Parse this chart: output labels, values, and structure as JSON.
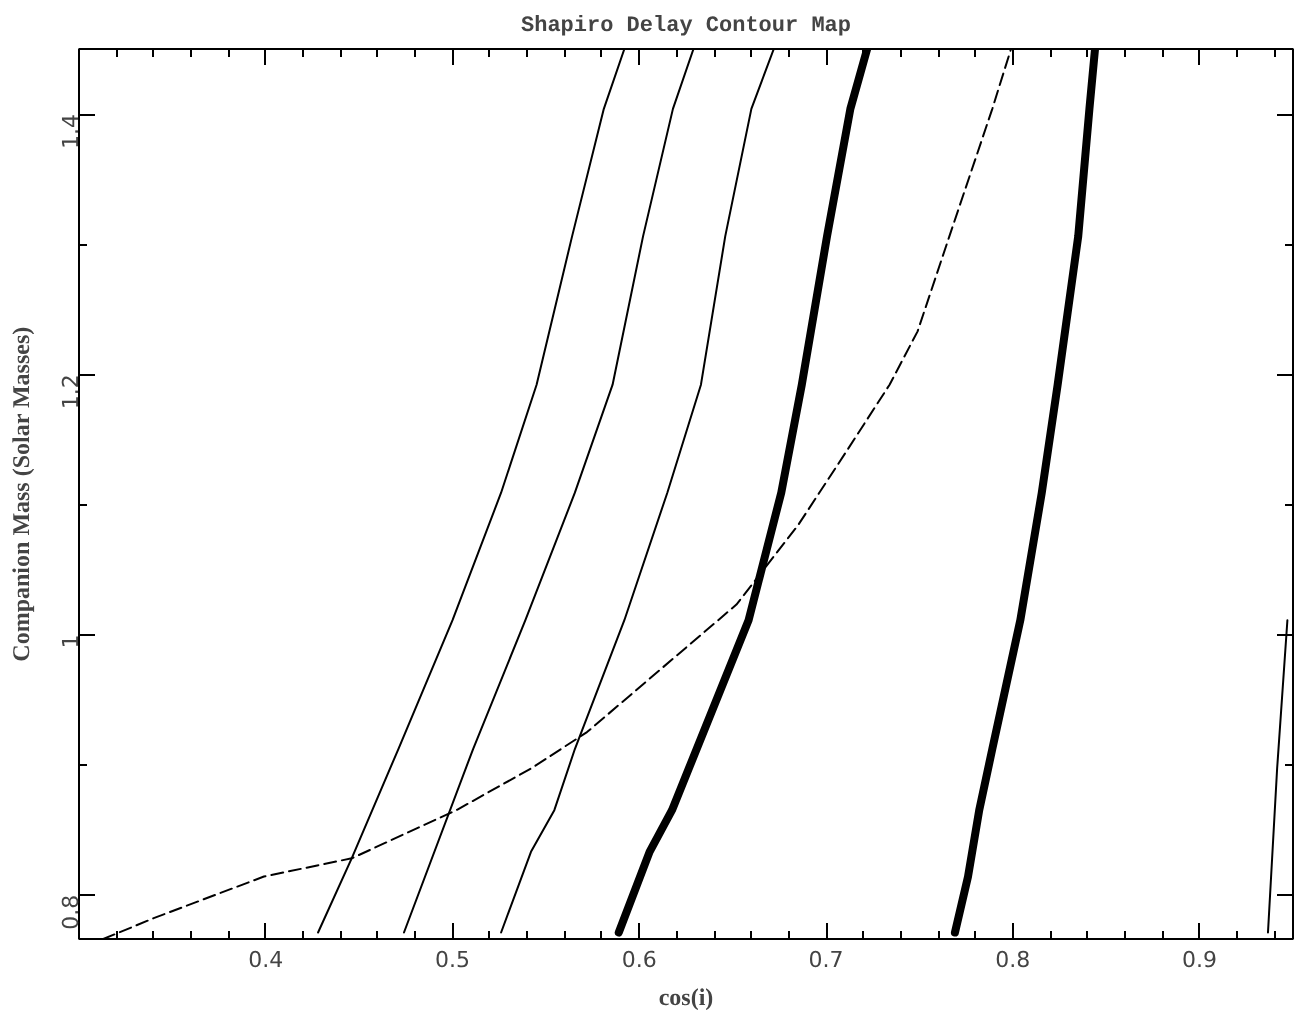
{
  "chart_data": {
    "type": "line",
    "title": "Shapiro Delay Contour Map",
    "xlabel": "cos(i)",
    "ylabel": "Companion Mass (Solar Masses)",
    "xlim": [
      0.3,
      0.95
    ],
    "ylim": [
      0.766,
      1.45
    ],
    "xticks": [
      {
        "value": 0.32,
        "label": null
      },
      {
        "value": 0.34,
        "label": null
      },
      {
        "value": 0.36,
        "label": null
      },
      {
        "value": 0.38,
        "label": null
      },
      0.4,
      {
        "value": 0.42,
        "label": null
      },
      {
        "value": 0.44,
        "label": null
      },
      {
        "value": 0.46,
        "label": null
      },
      {
        "value": 0.48,
        "label": null
      },
      0.5,
      {
        "value": 0.52,
        "label": null
      },
      {
        "value": 0.54,
        "label": null
      },
      {
        "value": 0.56,
        "label": null
      },
      {
        "value": 0.58,
        "label": null
      },
      0.6,
      {
        "value": 0.62,
        "label": null
      },
      {
        "value": 0.64,
        "label": null
      },
      {
        "value": 0.66,
        "label": null
      },
      {
        "value": 0.68,
        "label": null
      },
      0.7,
      {
        "value": 0.72,
        "label": null
      },
      {
        "value": 0.74,
        "label": null
      },
      {
        "value": 0.76,
        "label": null
      },
      {
        "value": 0.78,
        "label": null
      },
      0.8,
      {
        "value": 0.82,
        "label": null
      },
      {
        "value": 0.84,
        "label": null
      },
      {
        "value": 0.86,
        "label": null
      },
      {
        "value": 0.88,
        "label": null
      },
      0.9,
      {
        "value": 0.92,
        "label": null
      },
      {
        "value": 0.94,
        "label": null
      }
    ],
    "yticks": [
      0.8,
      {
        "value": 0.9,
        "label": null
      },
      1,
      {
        "value": 1.1,
        "label": null
      },
      1.2,
      {
        "value": 1.3,
        "label": null
      },
      1.4
    ],
    "series": [
      {
        "color": "#000000",
        "line_style": "solid",
        "x": [
          0.428,
          0.446,
          0.471,
          0.5,
          0.526,
          0.545,
          0.564,
          0.581,
          0.592
        ],
        "values": [
          0.771,
          0.828,
          0.912,
          1.011,
          1.109,
          1.192,
          1.306,
          1.404,
          1.45
        ]
      },
      {
        "color": "#000000",
        "line_style": "solid",
        "x": [
          0.474,
          0.511,
          0.539,
          0.5655,
          0.5857,
          0.602,
          0.618,
          0.629
        ],
        "values": [
          0.771,
          0.912,
          1.011,
          1.109,
          1.192,
          1.306,
          1.404,
          1.45
        ]
      },
      {
        "color": "#000000",
        "line_style": "solid",
        "x": [
          0.526,
          0.542,
          0.5545,
          0.5655,
          0.592,
          0.615,
          0.633,
          0.646,
          0.66,
          0.672
        ],
        "values": [
          0.771,
          0.833,
          0.865,
          0.912,
          1.011,
          1.109,
          1.192,
          1.306,
          1.404,
          1.45
        ]
      },
      {
        "color": "#000000",
        "line_style": "solid",
        "x": [
          0.589,
          0.6055,
          0.6175,
          0.6265,
          0.6585,
          0.676,
          0.687,
          0.7005,
          0.713,
          0.722
        ],
        "values": [
          0.771,
          0.833,
          0.865,
          0.897,
          1.011,
          1.109,
          1.192,
          1.306,
          1.404,
          1.45
        ]
      },
      {
        "color": "#000000",
        "line_style": "solid",
        "x": [
          0.769,
          0.776,
          0.782,
          0.789,
          0.804,
          0.8155,
          0.824,
          0.835,
          0.841,
          0.844
        ],
        "values": [
          0.771,
          0.814,
          0.865,
          0.912,
          1.011,
          1.109,
          1.192,
          1.306,
          1.404,
          1.45
        ]
      },
      {
        "color": "#000000",
        "line_style": "solid",
        "x": [
          0.9366,
          0.9415,
          0.947
        ],
        "values": [
          0.771,
          0.897,
          1.011
        ]
      },
      {
        "color": "#000000",
        "line_style": "dashed",
        "x": [
          0.313,
          0.34,
          0.399,
          0.446,
          0.502,
          0.542,
          0.572,
          0.652,
          0.685,
          0.711,
          0.734,
          0.749,
          0.766,
          0.789,
          0.799
        ],
        "values": [
          0.766,
          0.782,
          0.814,
          0.828,
          0.865,
          0.897,
          0.925,
          1.023,
          1.084,
          1.141,
          1.192,
          1.233,
          1.306,
          1.404,
          1.45
        ]
      }
    ]
  }
}
